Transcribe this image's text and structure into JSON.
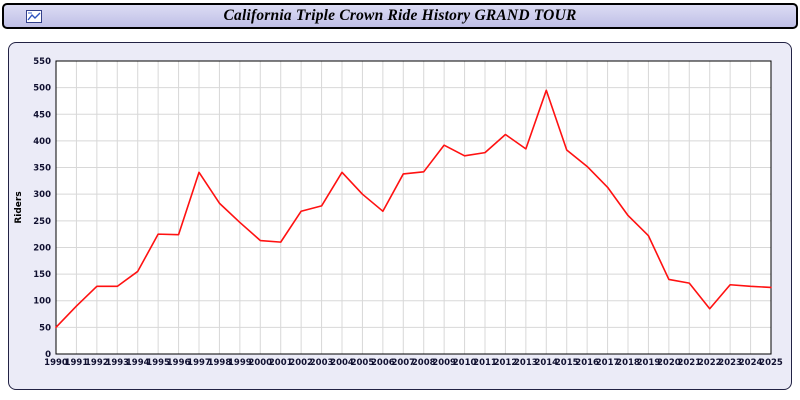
{
  "window": {
    "title": "California Triple Crown Ride History GRAND TOUR"
  },
  "chart_data": {
    "type": "line",
    "title": "California Triple Crown Ride History GRAND TOUR",
    "xlabel": "",
    "ylabel": "Riders",
    "ylim": [
      0,
      550
    ],
    "ytick_step": 50,
    "grid": true,
    "legend_position": "none",
    "plot_bg": "#ffffff",
    "grid_color": "#d8d8d8",
    "tick_color": "#101030",
    "x": [
      1990,
      1991,
      1992,
      1993,
      1994,
      1995,
      1996,
      1997,
      1998,
      1999,
      2000,
      2001,
      2002,
      2003,
      2004,
      2005,
      2006,
      2007,
      2008,
      2009,
      2010,
      2011,
      2012,
      2013,
      2014,
      2015,
      2016,
      2017,
      2018,
      2019,
      2020,
      2021,
      2022,
      2023,
      2024,
      2025
    ],
    "series": [
      {
        "name": "Riders",
        "color": "#ff1111",
        "values": [
          50,
          90,
          127,
          127,
          155,
          225,
          224,
          341,
          283,
          247,
          213,
          210,
          268,
          278,
          341,
          300,
          268,
          338,
          342,
          392,
          372,
          378,
          412,
          385,
          495,
          383,
          352,
          313,
          260,
          222,
          140,
          133,
          85,
          130,
          127,
          125
        ]
      }
    ]
  }
}
